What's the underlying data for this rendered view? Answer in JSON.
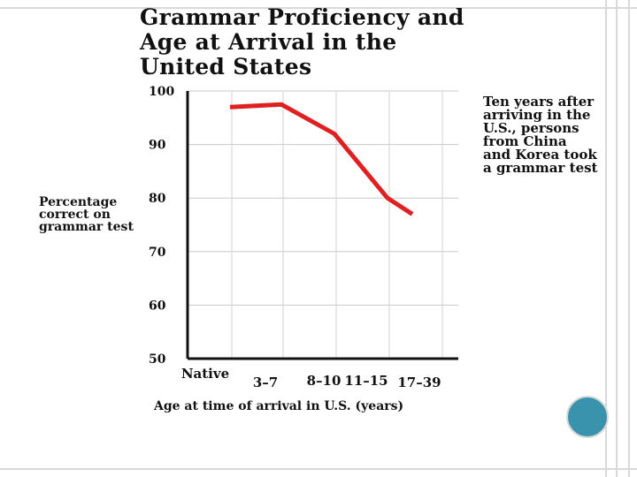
{
  "slide": {
    "title": "Grammar Proficiency and Age at Arrival in the United States",
    "side_note": "Ten years after arriving in the U.S., persons from China and Korea took a grammar test"
  },
  "chart_data": {
    "type": "line",
    "title": "Grammar Proficiency and Age at Arrival in the United States",
    "xlabel": "Age at time of arrival in U.S. (years)",
    "ylabel": "Percentage correct on grammar test",
    "categories": [
      "Native",
      "3–7",
      "8–10",
      "11–15",
      "17–39"
    ],
    "ylim": [
      50,
      100
    ],
    "yticks": [
      "100",
      "90",
      "80",
      "70",
      "60",
      "50"
    ],
    "ytick_values": [
      100,
      90,
      80,
      70,
      60,
      50
    ],
    "series": [
      {
        "values": [
          97,
          97.5,
          92,
          80,
          77
        ]
      }
    ],
    "line_color": "#e02020",
    "grid": true
  },
  "decor": {
    "accent_color": "#3a93ad"
  }
}
